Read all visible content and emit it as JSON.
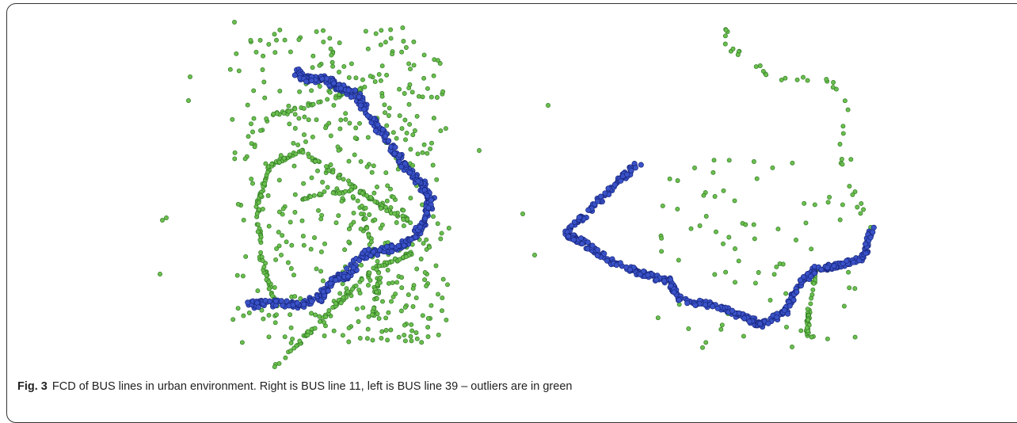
{
  "figure": {
    "label": "Fig. 3",
    "caption": "FCD of BUS lines in urban environment. Right is BUS line 11, left is BUS line 39 – outliers are in green"
  }
}
